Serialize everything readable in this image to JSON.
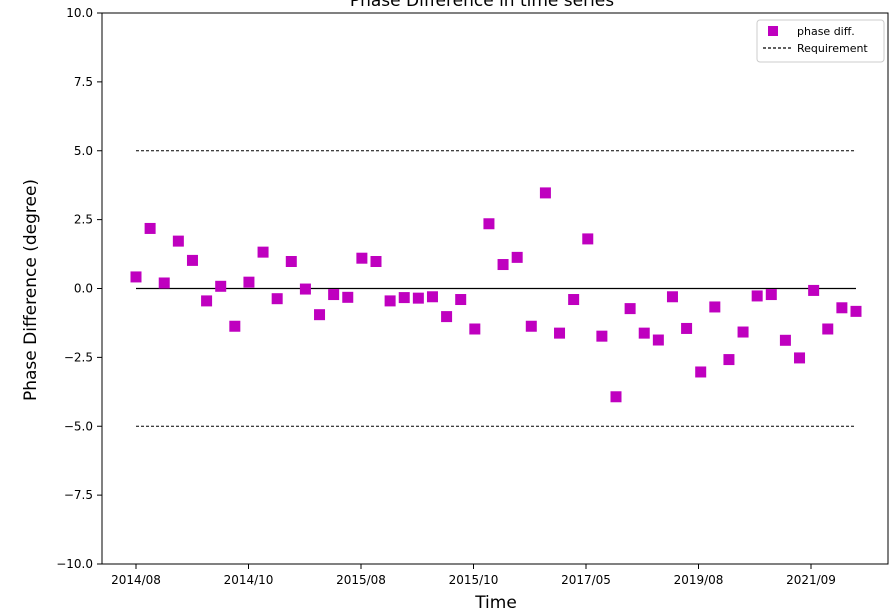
{
  "chart_data": {
    "type": "scatter",
    "title": "Phase Difference in time series",
    "xlabel": "Time",
    "ylabel": "Phase Difference (degree)",
    "ylim": [
      -10,
      10
    ],
    "yticks": [
      -10.0,
      -7.5,
      -5.0,
      -2.5,
      0.0,
      2.5,
      5.0,
      7.5,
      10.0
    ],
    "ytick_labels": [
      "−10.0",
      "−7.5",
      "−5.0",
      "−2.5",
      "0.0",
      "2.5",
      "5.0",
      "7.5",
      "10.0"
    ],
    "xtick_labels": [
      "2014/08",
      "2014/10",
      "2015/08",
      "2015/10",
      "2017/05",
      "2019/08",
      "2021/09"
    ],
    "grid": false,
    "legend": {
      "location": "top-right",
      "entries": [
        {
          "label": "phase diff.",
          "marker": "square",
          "color": "#bf00bf"
        },
        {
          "label": "Requirement",
          "style": "dashed",
          "color": "#000000"
        }
      ]
    },
    "reference_lines": [
      {
        "y": 5.0,
        "style": "dashed"
      },
      {
        "y": -5.0,
        "style": "dashed"
      },
      {
        "y": 0.0,
        "style": "solid"
      }
    ],
    "series": [
      {
        "name": "phase diff.",
        "marker": "square",
        "color": "#bf00bf",
        "values": [
          0.42,
          2.18,
          0.2,
          1.72,
          1.02,
          -0.45,
          0.08,
          -1.37,
          0.23,
          1.32,
          -0.37,
          0.98,
          -0.02,
          -0.95,
          -0.22,
          -0.32,
          1.1,
          0.98,
          -0.45,
          -0.33,
          -0.35,
          -0.3,
          -1.02,
          -0.4,
          -1.47,
          2.35,
          0.87,
          1.13,
          -1.37,
          3.47,
          -1.62,
          -0.4,
          1.8,
          -1.73,
          -3.93,
          -0.73,
          -1.62,
          -1.87,
          -0.3,
          -1.45,
          -3.03,
          -0.67,
          -2.58,
          -1.58,
          -0.27,
          -0.22,
          -1.88,
          -2.52,
          -0.07,
          -1.47,
          -0.7,
          -0.83
        ]
      }
    ]
  }
}
